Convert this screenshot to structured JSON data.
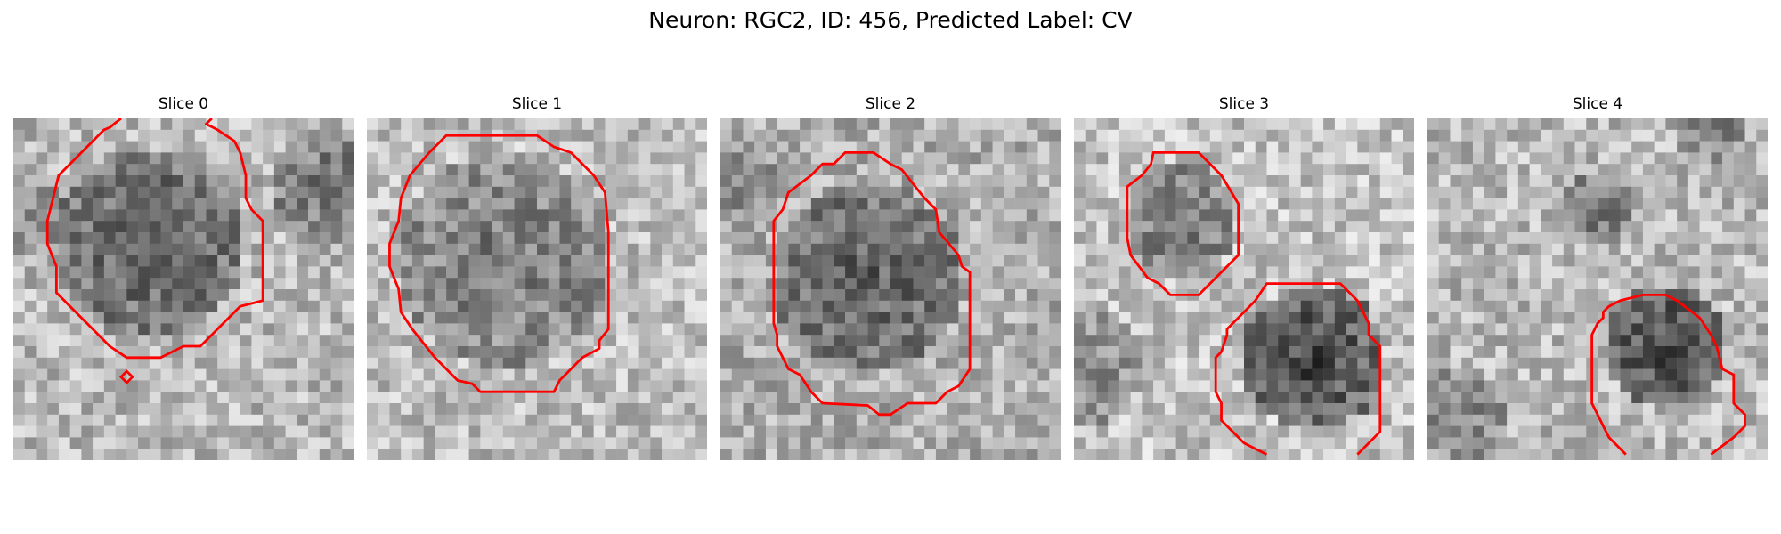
{
  "figure": {
    "title": "Neuron: RGC2, ID: 456, Predicted Label: CV"
  },
  "panels": [
    {
      "title": "Slice 0"
    },
    {
      "title": "Slice 1"
    },
    {
      "title": "Slice 2"
    },
    {
      "title": "Slice 3"
    },
    {
      "title": "Slice 4"
    }
  ],
  "colors": {
    "background": "#ffffff",
    "contour": "#ff0000",
    "tissue_dark": "#151515",
    "tissue_light": "#f0f0f0"
  }
}
